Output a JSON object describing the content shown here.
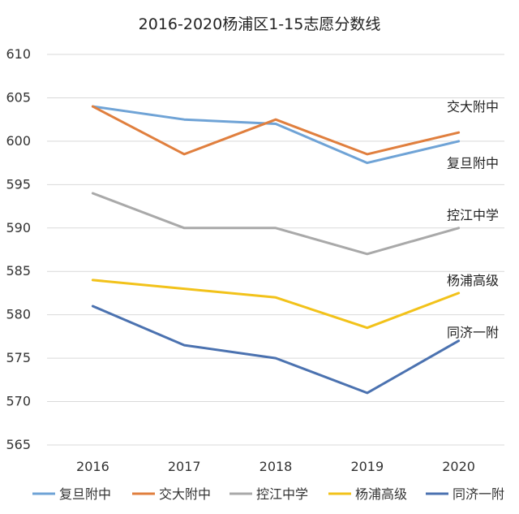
{
  "chart_data": {
    "type": "line",
    "title": "2016-2020杨浦区1-15志愿分数线",
    "xlabel": "",
    "ylabel": "",
    "categories": [
      "2016",
      "2017",
      "2018",
      "2019",
      "2020"
    ],
    "ylim": [
      565,
      610
    ],
    "yticks": [
      565,
      570,
      575,
      580,
      585,
      590,
      595,
      600,
      605,
      610
    ],
    "grid": true,
    "legend_position": "bottom",
    "series": [
      {
        "name": "复旦附中",
        "color": "#6fa3d6",
        "values": [
          604,
          602.5,
          602,
          597.5,
          600
        ]
      },
      {
        "name": "交大附中",
        "color": "#e07f3e",
        "values": [
          604,
          598.5,
          602.5,
          598.5,
          601
        ]
      },
      {
        "name": "控江中学",
        "color": "#a9a9a9",
        "values": [
          594,
          590,
          590,
          587,
          590
        ]
      },
      {
        "name": "杨浦高级",
        "color": "#f2c21a",
        "values": [
          584,
          583,
          582,
          578.5,
          582.5
        ]
      },
      {
        "name": "同济一附",
        "color": "#4b72b0",
        "values": [
          581,
          576.5,
          575,
          571,
          577
        ]
      }
    ],
    "end_labels": [
      {
        "text": "交大附中",
        "at": 604
      },
      {
        "text": "复旦附中",
        "at": 597.5
      },
      {
        "text": "控江中学",
        "at": 591.5
      },
      {
        "text": "杨浦高级",
        "at": 584
      },
      {
        "text": "同济一附",
        "at": 578
      }
    ]
  }
}
